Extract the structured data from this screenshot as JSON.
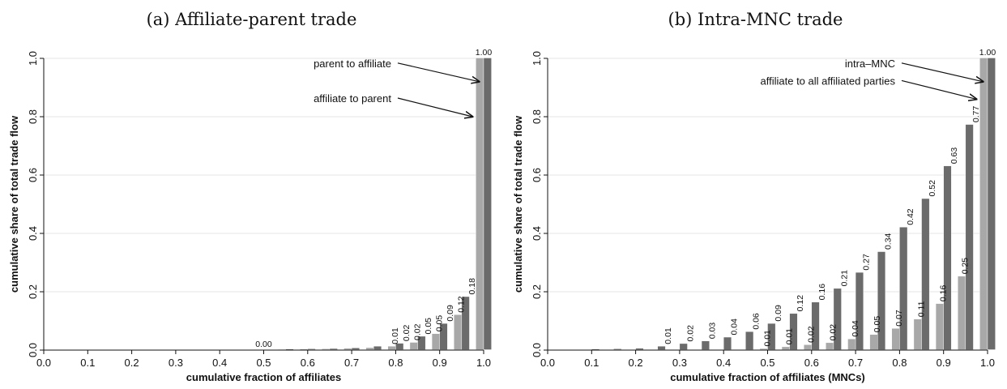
{
  "chart_data": [
    {
      "type": "bar",
      "title": "(a) Affiliate-parent trade",
      "xlabel": "cumulative fraction of affiliates",
      "ylabel": "cumulative share of total trade flow",
      "xlim": [
        0,
        1
      ],
      "ylim": [
        0,
        1
      ],
      "xticks": [
        "0.0",
        "0.1",
        "0.2",
        "0.3",
        "0.4",
        "0.5",
        "0.6",
        "0.7",
        "0.8",
        "0.9",
        "1.0"
      ],
      "yticks": [
        "0.0",
        "0.2",
        "0.4",
        "0.6",
        "0.8",
        "1.0"
      ],
      "grid": true,
      "colors": {
        "light": "#a8a8a8",
        "dark": "#6b6b6b"
      },
      "x": [
        0.05,
        0.1,
        0.15,
        0.2,
        0.25,
        0.3,
        0.35,
        0.4,
        0.45,
        0.5,
        0.55,
        0.6,
        0.65,
        0.7,
        0.75,
        0.8,
        0.85,
        0.9,
        0.95,
        1.0
      ],
      "series": [
        {
          "name": "affiliate to parent",
          "color": "#a8a8a8",
          "values": [
            0,
            0,
            0,
            0,
            0,
            0,
            0,
            0,
            0,
            0,
            0.001,
            0.002,
            0.003,
            0.005,
            0.007,
            0.012,
            0.025,
            0.055,
            0.12,
            1.0
          ]
        },
        {
          "name": "parent to affiliate",
          "color": "#6b6b6b",
          "values": [
            0,
            0,
            0,
            0,
            0,
            0,
            0,
            0,
            0,
            0,
            0.002,
            0.003,
            0.004,
            0.006,
            0.012,
            0.022,
            0.046,
            0.09,
            0.182,
            1.0
          ]
        }
      ],
      "data_labels": [
        {
          "x": 0.5,
          "y": 0.0,
          "text": "0.00",
          "rotate": false
        },
        {
          "x": 0.8,
          "y": 0.012,
          "text": "0.01",
          "rotate": true
        },
        {
          "x": 0.825,
          "y": 0.022,
          "text": "0.02",
          "rotate": true
        },
        {
          "x": 0.85,
          "y": 0.025,
          "text": "0.02",
          "rotate": true
        },
        {
          "x": 0.875,
          "y": 0.046,
          "text": "0.05",
          "rotate": true
        },
        {
          "x": 0.9,
          "y": 0.055,
          "text": "0.05",
          "rotate": true
        },
        {
          "x": 0.925,
          "y": 0.09,
          "text": "0.09",
          "rotate": true
        },
        {
          "x": 0.95,
          "y": 0.12,
          "text": "0.12",
          "rotate": true
        },
        {
          "x": 0.975,
          "y": 0.182,
          "text": "0.18",
          "rotate": true
        },
        {
          "x": 1.0,
          "y": 1.0,
          "text": "1.00",
          "rotate": false
        }
      ],
      "annotations": [
        {
          "text": "parent to affiliate",
          "x": 0.79,
          "y": 0.97,
          "ax": 0.99,
          "ay": 0.92
        },
        {
          "text": "affiliate to parent",
          "x": 0.79,
          "y": 0.85,
          "ax": 0.975,
          "ay": 0.8
        }
      ]
    },
    {
      "type": "bar",
      "title": "(b) Intra-MNC trade",
      "xlabel": "cumulative fraction of affiliates (MNCs)",
      "ylabel": "cumulative share of total trade flow",
      "xlim": [
        0,
        1
      ],
      "ylim": [
        0,
        1
      ],
      "xticks": [
        "0.0",
        "0.1",
        "0.2",
        "0.3",
        "0.4",
        "0.5",
        "0.6",
        "0.7",
        "0.8",
        "0.9",
        "1.0"
      ],
      "yticks": [
        "0.0",
        "0.2",
        "0.4",
        "0.6",
        "0.8",
        "1.0"
      ],
      "grid": true,
      "colors": {
        "light": "#a8a8a8",
        "dark": "#6b6b6b"
      },
      "x": [
        0.05,
        0.1,
        0.15,
        0.2,
        0.25,
        0.3,
        0.35,
        0.4,
        0.45,
        0.5,
        0.55,
        0.6,
        0.65,
        0.7,
        0.75,
        0.8,
        0.85,
        0.9,
        0.95,
        1.0
      ],
      "series": [
        {
          "name": "affiliate to all affiliated parties",
          "color": "#a8a8a8",
          "values": [
            0,
            0,
            0,
            0,
            0,
            0,
            0,
            0,
            0,
            0.004,
            0.01,
            0.017,
            0.024,
            0.037,
            0.052,
            0.073,
            0.105,
            0.158,
            0.252,
            1.0
          ]
        },
        {
          "name": "intra–MNC",
          "color": "#6b6b6b",
          "values": [
            0,
            0.002,
            0.003,
            0.005,
            0.012,
            0.021,
            0.03,
            0.043,
            0.062,
            0.09,
            0.124,
            0.163,
            0.21,
            0.265,
            0.336,
            0.42,
            0.518,
            0.63,
            0.772,
            1.0
          ]
        }
      ],
      "data_labels": [
        {
          "x": 0.275,
          "y": 0.012,
          "text": "0.01"
        },
        {
          "x": 0.325,
          "y": 0.021,
          "text": "0.02"
        },
        {
          "x": 0.375,
          "y": 0.03,
          "text": "0.03"
        },
        {
          "x": 0.425,
          "y": 0.043,
          "text": "0.04"
        },
        {
          "x": 0.475,
          "y": 0.062,
          "text": "0.06"
        },
        {
          "x": 0.5,
          "y": 0.004,
          "text": "0.01"
        },
        {
          "x": 0.525,
          "y": 0.09,
          "text": "0.09"
        },
        {
          "x": 0.55,
          "y": 0.01,
          "text": "0.01"
        },
        {
          "x": 0.575,
          "y": 0.124,
          "text": "0.12"
        },
        {
          "x": 0.6,
          "y": 0.017,
          "text": "0.02"
        },
        {
          "x": 0.625,
          "y": 0.163,
          "text": "0.16"
        },
        {
          "x": 0.65,
          "y": 0.024,
          "text": "0.02"
        },
        {
          "x": 0.675,
          "y": 0.21,
          "text": "0.21"
        },
        {
          "x": 0.7,
          "y": 0.037,
          "text": "0.04"
        },
        {
          "x": 0.725,
          "y": 0.265,
          "text": "0.27"
        },
        {
          "x": 0.75,
          "y": 0.052,
          "text": "0.05"
        },
        {
          "x": 0.775,
          "y": 0.336,
          "text": "0.34"
        },
        {
          "x": 0.8,
          "y": 0.073,
          "text": "0.07"
        },
        {
          "x": 0.825,
          "y": 0.42,
          "text": "0.42"
        },
        {
          "x": 0.85,
          "y": 0.105,
          "text": "0.11"
        },
        {
          "x": 0.875,
          "y": 0.518,
          "text": "0.52"
        },
        {
          "x": 0.9,
          "y": 0.158,
          "text": "0.16"
        },
        {
          "x": 0.925,
          "y": 0.63,
          "text": "0.63"
        },
        {
          "x": 0.95,
          "y": 0.252,
          "text": "0.25"
        },
        {
          "x": 0.975,
          "y": 0.772,
          "text": "0.77"
        },
        {
          "x": 1.0,
          "y": 1.0,
          "text": "1.00",
          "rotate": false
        }
      ],
      "annotations": [
        {
          "text": "intra–MNC",
          "x": 0.79,
          "y": 0.97,
          "ax": 0.99,
          "ay": 0.92
        },
        {
          "text": "affiliate to all affiliated parties",
          "x": 0.79,
          "y": 0.91,
          "ax": 0.975,
          "ay": 0.86
        }
      ]
    }
  ]
}
